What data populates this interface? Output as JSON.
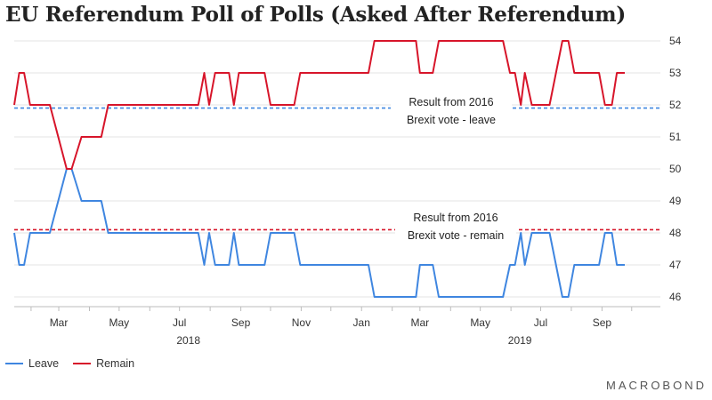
{
  "title": "EU Referendum Poll of Polls (Asked After Referendum)",
  "brand": "MACROBOND",
  "chart_data": {
    "type": "line",
    "title": "EU Referendum Poll of Polls (Asked After Referendum)",
    "xlabel": "",
    "ylabel": "",
    "ylim": [
      46,
      54
    ],
    "y_ticks": [
      46,
      47,
      48,
      49,
      50,
      51,
      52,
      53,
      54
    ],
    "y_axis_side": "right",
    "x_range": [
      "2018-01-15",
      "2019-10-30"
    ],
    "x_ticks": [
      {
        "date": "2018-03-01",
        "label": "Mar"
      },
      {
        "date": "2018-05-01",
        "label": "May"
      },
      {
        "date": "2018-07-01",
        "label": "Jul"
      },
      {
        "date": "2018-09-01",
        "label": "Sep"
      },
      {
        "date": "2018-11-01",
        "label": "Nov"
      },
      {
        "date": "2019-01-01",
        "label": "Jan"
      },
      {
        "date": "2019-03-01",
        "label": "Mar"
      },
      {
        "date": "2019-05-01",
        "label": "May"
      },
      {
        "date": "2019-07-01",
        "label": "Jul"
      },
      {
        "date": "2019-09-01",
        "label": "Sep"
      }
    ],
    "year_labels": [
      {
        "date": "2018-07-01",
        "label": "2018"
      },
      {
        "date": "2019-06-01",
        "label": "2019"
      }
    ],
    "grid": true,
    "legend": "bottom-left",
    "series": [
      {
        "name": "Leave",
        "color": "#3f86e0",
        "points": [
          [
            "2018-01-15",
            48
          ],
          [
            "2018-01-20",
            47
          ],
          [
            "2018-01-25",
            47
          ],
          [
            "2018-01-31",
            48
          ],
          [
            "2018-02-20",
            48
          ],
          [
            "2018-03-09",
            50
          ],
          [
            "2018-03-14",
            50
          ],
          [
            "2018-03-24",
            49
          ],
          [
            "2018-04-13",
            49
          ],
          [
            "2018-04-20",
            48
          ],
          [
            "2018-07-20",
            48
          ],
          [
            "2018-07-26",
            47
          ],
          [
            "2018-07-31",
            48
          ],
          [
            "2018-08-06",
            47
          ],
          [
            "2018-08-20",
            47
          ],
          [
            "2018-08-25",
            48
          ],
          [
            "2018-08-30",
            47
          ],
          [
            "2018-09-25",
            47
          ],
          [
            "2018-10-01",
            48
          ],
          [
            "2018-10-25",
            48
          ],
          [
            "2018-10-31",
            47
          ],
          [
            "2019-01-08",
            47
          ],
          [
            "2019-01-14",
            46
          ],
          [
            "2019-02-25",
            46
          ],
          [
            "2019-03-01",
            47
          ],
          [
            "2019-03-14",
            47
          ],
          [
            "2019-03-20",
            46
          ],
          [
            "2019-05-24",
            46
          ],
          [
            "2019-05-31",
            47
          ],
          [
            "2019-06-05",
            47
          ],
          [
            "2019-06-11",
            48
          ],
          [
            "2019-06-15",
            47
          ],
          [
            "2019-06-22",
            48
          ],
          [
            "2019-07-10",
            48
          ],
          [
            "2019-07-23",
            46
          ],
          [
            "2019-07-29",
            46
          ],
          [
            "2019-08-04",
            47
          ],
          [
            "2019-08-29",
            47
          ],
          [
            "2019-09-04",
            48
          ],
          [
            "2019-09-11",
            48
          ],
          [
            "2019-09-16",
            47
          ],
          [
            "2019-09-24",
            47
          ]
        ]
      },
      {
        "name": "Remain",
        "color": "#d7152a",
        "points": [
          [
            "2018-01-15",
            52
          ],
          [
            "2018-01-20",
            53
          ],
          [
            "2018-01-25",
            53
          ],
          [
            "2018-01-31",
            52
          ],
          [
            "2018-02-20",
            52
          ],
          [
            "2018-03-09",
            50
          ],
          [
            "2018-03-14",
            50
          ],
          [
            "2018-03-24",
            51
          ],
          [
            "2018-04-13",
            51
          ],
          [
            "2018-04-20",
            52
          ],
          [
            "2018-07-20",
            52
          ],
          [
            "2018-07-26",
            53
          ],
          [
            "2018-07-31",
            52
          ],
          [
            "2018-08-06",
            53
          ],
          [
            "2018-08-20",
            53
          ],
          [
            "2018-08-25",
            52
          ],
          [
            "2018-08-30",
            53
          ],
          [
            "2018-09-25",
            53
          ],
          [
            "2018-10-01",
            52
          ],
          [
            "2018-10-25",
            52
          ],
          [
            "2018-10-31",
            53
          ],
          [
            "2019-01-08",
            53
          ],
          [
            "2019-01-14",
            54
          ],
          [
            "2019-02-25",
            54
          ],
          [
            "2019-03-01",
            53
          ],
          [
            "2019-03-14",
            53
          ],
          [
            "2019-03-20",
            54
          ],
          [
            "2019-05-24",
            54
          ],
          [
            "2019-05-31",
            53
          ],
          [
            "2019-06-05",
            53
          ],
          [
            "2019-06-11",
            52
          ],
          [
            "2019-06-15",
            53
          ],
          [
            "2019-06-22",
            52
          ],
          [
            "2019-07-10",
            52
          ],
          [
            "2019-07-23",
            54
          ],
          [
            "2019-07-29",
            54
          ],
          [
            "2019-08-04",
            53
          ],
          [
            "2019-08-29",
            53
          ],
          [
            "2019-09-04",
            52
          ],
          [
            "2019-09-11",
            52
          ],
          [
            "2019-09-16",
            53
          ],
          [
            "2019-09-24",
            53
          ]
        ]
      }
    ],
    "reference_lines": [
      {
        "value": 51.9,
        "color": "#3f86e0",
        "style": "dashed",
        "annotation": [
          "Result from 2016",
          "Brexit vote - leave"
        ]
      },
      {
        "value": 48.1,
        "color": "#d7152a",
        "style": "dashed",
        "annotation": [
          "Result from 2016",
          "Brexit vote - remain"
        ]
      }
    ]
  }
}
